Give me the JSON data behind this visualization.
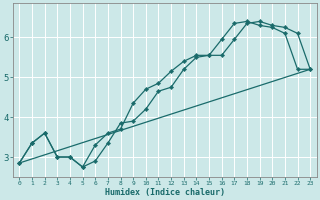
{
  "xlabel": "Humidex (Indice chaleur)",
  "background_color": "#cce8e8",
  "grid_color": "#ffffff",
  "line_color": "#1a6b6b",
  "xlim": [
    -0.5,
    23.5
  ],
  "ylim": [
    2.5,
    6.85
  ],
  "xticks": [
    0,
    1,
    2,
    3,
    4,
    5,
    6,
    7,
    8,
    9,
    10,
    11,
    12,
    13,
    14,
    15,
    16,
    17,
    18,
    19,
    20,
    21,
    22,
    23
  ],
  "yticks": [
    3,
    4,
    5,
    6
  ],
  "line1_x": [
    0,
    1,
    2,
    3,
    4,
    5,
    6,
    7,
    8,
    9,
    10,
    11,
    12,
    13,
    14,
    15,
    16,
    17,
    18,
    19,
    20,
    21,
    22,
    23
  ],
  "line1_y": [
    2.85,
    3.35,
    3.6,
    3.0,
    3.0,
    2.75,
    2.9,
    3.35,
    3.85,
    3.9,
    4.2,
    4.65,
    4.75,
    5.2,
    5.5,
    5.55,
    5.55,
    5.95,
    6.35,
    6.4,
    6.3,
    6.25,
    6.1,
    5.2
  ],
  "line2_x": [
    0,
    1,
    2,
    3,
    4,
    5,
    6,
    7,
    8,
    9,
    10,
    11,
    12,
    13,
    14,
    15,
    16,
    17,
    18,
    19,
    20,
    21,
    22,
    23
  ],
  "line2_y": [
    2.85,
    3.35,
    3.6,
    3.0,
    3.0,
    2.75,
    3.3,
    3.6,
    3.7,
    4.35,
    4.7,
    4.85,
    5.15,
    5.4,
    5.55,
    5.55,
    5.95,
    6.35,
    6.4,
    6.3,
    6.25,
    6.1,
    5.2,
    5.2
  ],
  "line3_x": [
    0,
    23
  ],
  "line3_y": [
    2.85,
    5.2
  ]
}
